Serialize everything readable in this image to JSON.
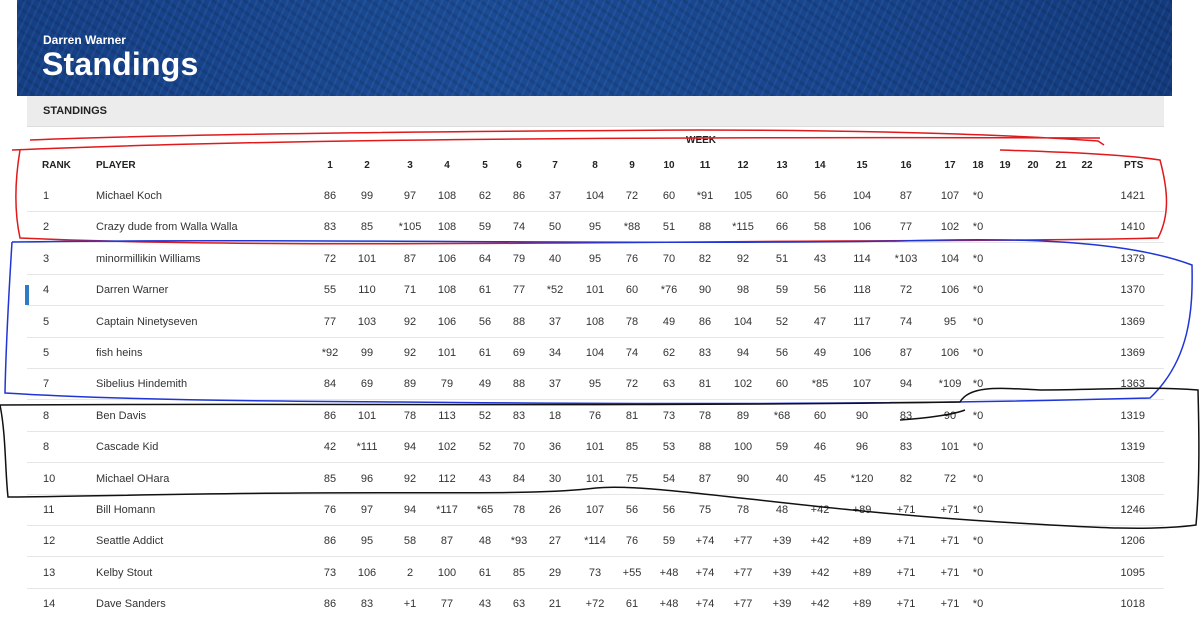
{
  "header": {
    "owner": "Darren Warner",
    "title": "Standings"
  },
  "section": {
    "title": "STANDINGS"
  },
  "table": {
    "week_label": "WEEK",
    "rank_header": "RANK",
    "player_header": "PLAYER",
    "pts_header": "PTS",
    "weeks": [
      "1",
      "2",
      "3",
      "4",
      "5",
      "6",
      "7",
      "8",
      "9",
      "10",
      "11",
      "12",
      "13",
      "14",
      "15",
      "16",
      "17",
      "18",
      "19",
      "20",
      "21",
      "22"
    ],
    "rows": [
      {
        "rank": "1",
        "player": "Michael Koch",
        "scores": [
          "86",
          "99",
          "97",
          "108",
          "62",
          "86",
          "37",
          "104",
          "72",
          "60",
          "*91",
          "105",
          "60",
          "56",
          "104",
          "87",
          "107",
          "*0"
        ],
        "pts": "1421"
      },
      {
        "rank": "2",
        "player": "Crazy dude from Walla Walla",
        "scores": [
          "83",
          "85",
          "*105",
          "108",
          "59",
          "74",
          "50",
          "95",
          "*88",
          "51",
          "88",
          "*115",
          "66",
          "58",
          "106",
          "77",
          "102",
          "*0"
        ],
        "pts": "1410"
      },
      {
        "rank": "3",
        "player": "minormillikin Williams",
        "scores": [
          "72",
          "101",
          "87",
          "106",
          "64",
          "79",
          "40",
          "95",
          "76",
          "70",
          "82",
          "92",
          "51",
          "43",
          "114",
          "*103",
          "104",
          "*0"
        ],
        "pts": "1379"
      },
      {
        "rank": "4",
        "player": "Darren Warner",
        "scores": [
          "55",
          "110",
          "71",
          "108",
          "61",
          "77",
          "*52",
          "101",
          "60",
          "*76",
          "90",
          "98",
          "59",
          "56",
          "118",
          "72",
          "106",
          "*0"
        ],
        "pts": "1370",
        "current": true
      },
      {
        "rank": "5",
        "player": "Captain Ninetyseven",
        "scores": [
          "77",
          "103",
          "92",
          "106",
          "56",
          "88",
          "37",
          "108",
          "78",
          "49",
          "86",
          "104",
          "52",
          "47",
          "117",
          "74",
          "95",
          "*0"
        ],
        "pts": "1369"
      },
      {
        "rank": "5",
        "player": "fish heins",
        "scores": [
          "*92",
          "99",
          "92",
          "101",
          "61",
          "69",
          "34",
          "104",
          "74",
          "62",
          "83",
          "94",
          "56",
          "49",
          "106",
          "87",
          "106",
          "*0"
        ],
        "pts": "1369"
      },
      {
        "rank": "7",
        "player": "Sibelius Hindemith",
        "scores": [
          "84",
          "69",
          "89",
          "79",
          "49",
          "88",
          "37",
          "95",
          "72",
          "63",
          "81",
          "102",
          "60",
          "*85",
          "107",
          "94",
          "*109",
          "*0"
        ],
        "pts": "1363"
      },
      {
        "rank": "8",
        "player": "Ben Davis",
        "scores": [
          "86",
          "101",
          "78",
          "113",
          "52",
          "83",
          "18",
          "76",
          "81",
          "73",
          "78",
          "89",
          "*68",
          "60",
          "90",
          "83",
          "90",
          "*0"
        ],
        "pts": "1319"
      },
      {
        "rank": "8",
        "player": "Cascade Kid",
        "scores": [
          "42",
          "*111",
          "94",
          "102",
          "52",
          "70",
          "36",
          "101",
          "85",
          "53",
          "88",
          "100",
          "59",
          "46",
          "96",
          "83",
          "101",
          "*0"
        ],
        "pts": "1319"
      },
      {
        "rank": "10",
        "player": "Michael OHara",
        "scores": [
          "85",
          "96",
          "92",
          "112",
          "43",
          "84",
          "30",
          "101",
          "75",
          "54",
          "87",
          "90",
          "40",
          "45",
          "*120",
          "82",
          "72",
          "*0"
        ],
        "pts": "1308"
      },
      {
        "rank": "11",
        "player": "Bill Homann",
        "scores": [
          "76",
          "97",
          "94",
          "*117",
          "*65",
          "78",
          "26",
          "107",
          "56",
          "56",
          "75",
          "78",
          "48",
          "+42",
          "+89",
          "+71",
          "+71",
          "*0"
        ],
        "pts": "1246"
      },
      {
        "rank": "12",
        "player": "Seattle Addict",
        "scores": [
          "86",
          "95",
          "58",
          "87",
          "48",
          "*93",
          "27",
          "*114",
          "76",
          "59",
          "+74",
          "+77",
          "+39",
          "+42",
          "+89",
          "+71",
          "+71",
          "*0"
        ],
        "pts": "1206"
      },
      {
        "rank": "13",
        "player": "Kelby Stout",
        "scores": [
          "73",
          "106",
          "2",
          "100",
          "61",
          "85",
          "29",
          "73",
          "+55",
          "+48",
          "+74",
          "+77",
          "+39",
          "+42",
          "+89",
          "+71",
          "+71",
          "*0"
        ],
        "pts": "1095"
      },
      {
        "rank": "14",
        "player": "Dave Sanders",
        "scores": [
          "86",
          "83",
          "+1",
          "77",
          "43",
          "63",
          "21",
          "+72",
          "61",
          "+48",
          "+74",
          "+77",
          "+39",
          "+42",
          "+89",
          "+71",
          "+71",
          "*0"
        ],
        "pts": "1018"
      }
    ]
  },
  "annotation_colors": {
    "red": "#e0191b",
    "blue": "#1f35d6",
    "black": "#111111"
  }
}
